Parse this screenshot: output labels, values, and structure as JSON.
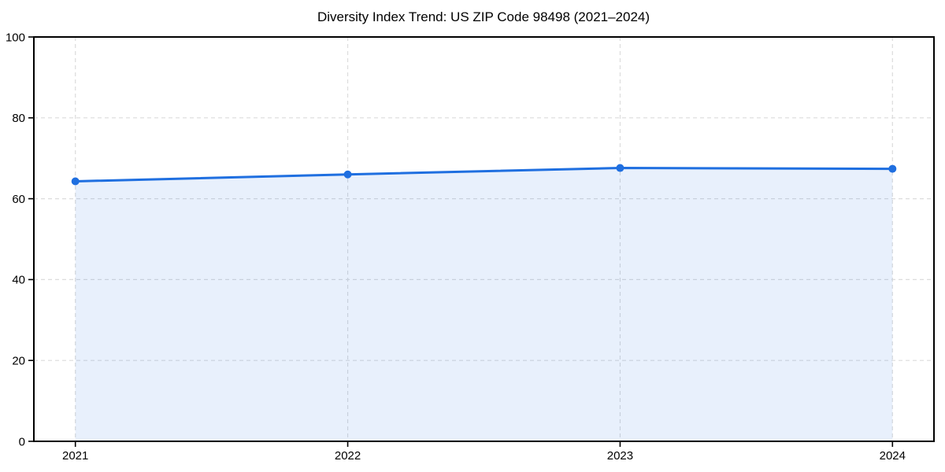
{
  "chart_data": {
    "type": "area",
    "title": "Diversity Index Trend: US ZIP Code 98498 (2021–2024)",
    "categories": [
      "2021",
      "2022",
      "2023",
      "2024"
    ],
    "series": [
      {
        "name": "Diversity Index",
        "values": [
          64.3,
          66.0,
          67.6,
          67.4
        ]
      }
    ],
    "xlabel": "",
    "ylabel": "",
    "ylim": [
      0,
      100
    ],
    "yticks": [
      0,
      20,
      40,
      60,
      80,
      100
    ],
    "grid": true,
    "grid_style": "dashed",
    "legend": "none",
    "colors": {
      "line": "#1f6fe0",
      "marker": "#1f6fe0",
      "fill": "rgba(31,111,224,0.10)",
      "gridline": "#dcdcdc",
      "axis": "#000000",
      "text": "#000000",
      "background": "#ffffff"
    }
  }
}
